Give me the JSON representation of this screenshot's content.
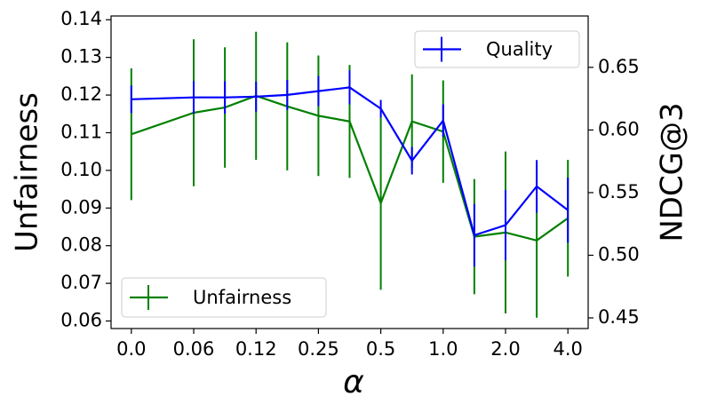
{
  "chart_data": {
    "type": "errorbar_line",
    "xlabel": "α",
    "ylabel": "Unfairness",
    "y2label": "NDCG@3",
    "x": [
      0,
      2,
      3,
      4,
      5,
      6,
      7,
      8,
      9,
      10,
      11,
      12,
      13,
      14
    ],
    "xlim": [
      -0.65,
      14.65
    ],
    "xticks": [
      {
        "value": 0,
        "label": "0.0"
      },
      {
        "value": 2,
        "label": "0.06"
      },
      {
        "value": 4,
        "label": "0.12"
      },
      {
        "value": 6,
        "label": "0.25"
      },
      {
        "value": 8,
        "label": "0.5"
      },
      {
        "value": 10,
        "label": "1.0"
      },
      {
        "value": 12,
        "label": "2.0"
      },
      {
        "value": 14,
        "label": "4.0"
      }
    ],
    "ylim": [
      0.058,
      0.141
    ],
    "yticks": [
      0.06,
      0.07,
      0.08,
      0.09,
      {
        "value": 0.1,
        "label": "0.10"
      },
      0.11,
      0.12,
      0.13,
      0.14
    ],
    "y2lim": [
      0.4415,
      0.691
    ],
    "y2ticks": [
      0.45,
      {
        "value": 0.5,
        "label": "0.50"
      },
      0.55,
      {
        "value": 0.6,
        "label": "0.60"
      },
      0.65
    ],
    "series": [
      {
        "name": "Unfairness",
        "color": "#008000",
        "legend": "lower left",
        "values": [
          0.1096,
          0.1153,
          0.1167,
          0.1198,
          0.117,
          0.1145,
          0.113,
          0.0913,
          0.113,
          0.1103,
          0.0824,
          0.0835,
          0.0814,
          0.0873
        ],
        "errors": [
          0.0175,
          0.0195,
          0.016,
          0.017,
          0.017,
          0.016,
          0.015,
          0.023,
          0.0125,
          0.0136,
          0.0153,
          0.0215,
          0.0205,
          0.0155
        ]
      },
      {
        "name": "Quality",
        "color": "#0000ff",
        "axis": "y2",
        "legend": "upper right",
        "values": [
          0.6245,
          0.626,
          0.626,
          0.6266,
          0.628,
          0.631,
          0.634,
          0.617,
          0.5755,
          0.6075,
          0.516,
          0.524,
          0.555,
          0.536
        ],
        "errors": [
          0.011,
          0.013,
          0.013,
          0.012,
          0.012,
          0.012,
          0.0135,
          0.007,
          0.011,
          0.013,
          0.025,
          0.028,
          0.021,
          0.026
        ]
      }
    ]
  }
}
